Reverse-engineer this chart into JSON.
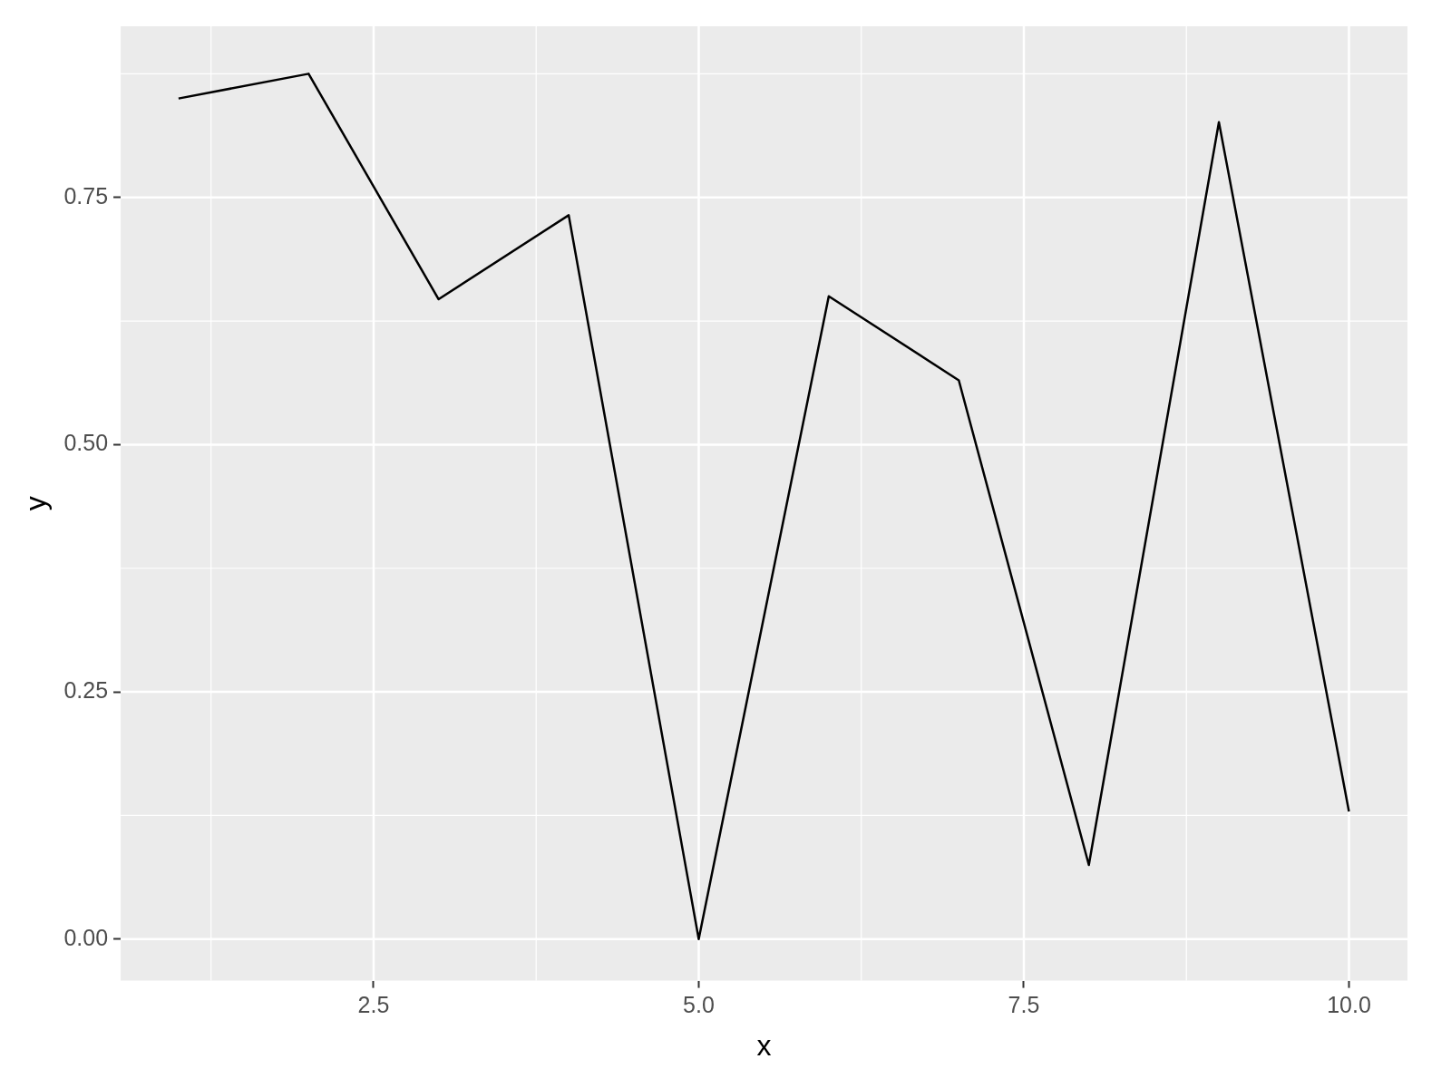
{
  "chart_data": {
    "type": "line",
    "xlabel": "x",
    "ylabel": "y",
    "x": [
      1,
      2,
      3,
      4,
      5,
      6,
      7,
      8,
      9,
      10
    ],
    "series": [
      {
        "color": "#000000",
        "values": [
          0.85,
          0.875,
          0.647,
          0.732,
          0.0,
          0.65,
          0.565,
          0.075,
          0.826,
          0.129
        ]
      }
    ],
    "xlim": [
      0.555,
      10.45
    ],
    "ylim": [
      -0.042,
      0.923
    ],
    "xticks": [
      {
        "value": 2.5,
        "label": "2.5"
      },
      {
        "value": 5,
        "label": "5.0"
      },
      {
        "value": 7.5,
        "label": "7.5"
      },
      {
        "value": 10,
        "label": "10.0"
      }
    ],
    "yticks": [
      {
        "value": 0,
        "label": "0.00"
      },
      {
        "value": 0.25,
        "label": "0.25"
      },
      {
        "value": 0.5,
        "label": "0.50"
      },
      {
        "value": 0.75,
        "label": "0.75"
      }
    ],
    "grid": true,
    "legend": false,
    "marker": "none",
    "line_style": "solid"
  }
}
